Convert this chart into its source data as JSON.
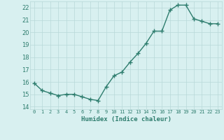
{
  "x": [
    0,
    1,
    2,
    3,
    4,
    5,
    6,
    7,
    8,
    9,
    10,
    11,
    12,
    13,
    14,
    15,
    16,
    17,
    18,
    19,
    20,
    21,
    22,
    23
  ],
  "y": [
    15.9,
    15.3,
    15.1,
    14.9,
    15.0,
    15.0,
    14.8,
    14.6,
    14.5,
    15.6,
    16.5,
    16.8,
    17.6,
    18.3,
    19.1,
    20.1,
    20.1,
    21.8,
    22.2,
    22.2,
    21.1,
    20.9,
    20.7,
    20.7
  ],
  "line_color": "#2e7d6e",
  "marker": "+",
  "bg_color": "#d8f0f0",
  "grid_color": "#b8d8d8",
  "xlim": [
    -0.5,
    23.5
  ],
  "ylim": [
    13.8,
    22.5
  ],
  "yticks": [
    14,
    15,
    16,
    17,
    18,
    19,
    20,
    21,
    22
  ],
  "xlabel": "Humidex (Indice chaleur)",
  "xlabel_color": "#2e7d6e",
  "tick_color": "#2e7d6e",
  "linewidth": 1.0,
  "markersize": 4,
  "markeredgewidth": 1.0
}
